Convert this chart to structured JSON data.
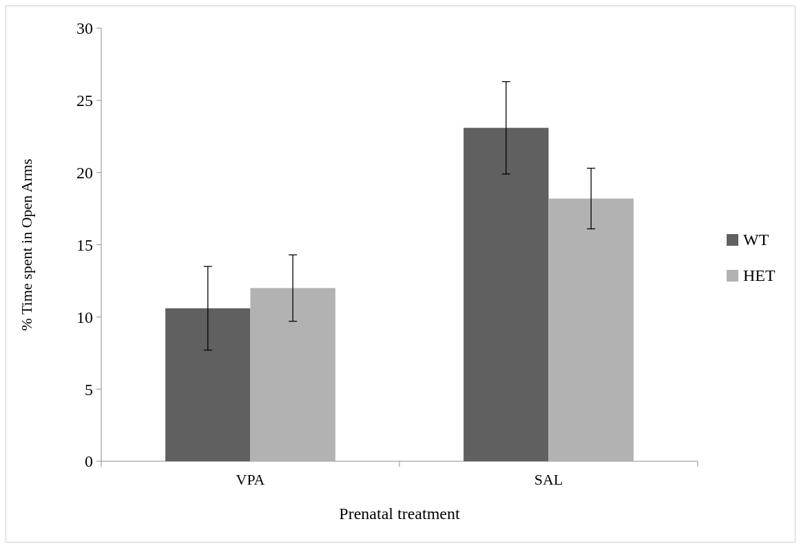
{
  "chart_data": {
    "type": "bar",
    "xlabel": "Prenatal treatment",
    "ylabel": "% Time spent in Open Arms",
    "categories": [
      "VPA",
      "SAL"
    ],
    "series": [
      {
        "name": "WT",
        "color": "#606060",
        "values": [
          10.6,
          23.1
        ],
        "errors": [
          2.9,
          3.2
        ]
      },
      {
        "name": "HET",
        "color": "#b2b2b2",
        "values": [
          12.0,
          18.2
        ],
        "errors": [
          2.3,
          2.1
        ]
      }
    ],
    "ylim": [
      0,
      30
    ],
    "yticks": [
      0,
      5,
      10,
      15,
      20,
      25,
      30
    ],
    "grid": false,
    "legend": "right"
  }
}
